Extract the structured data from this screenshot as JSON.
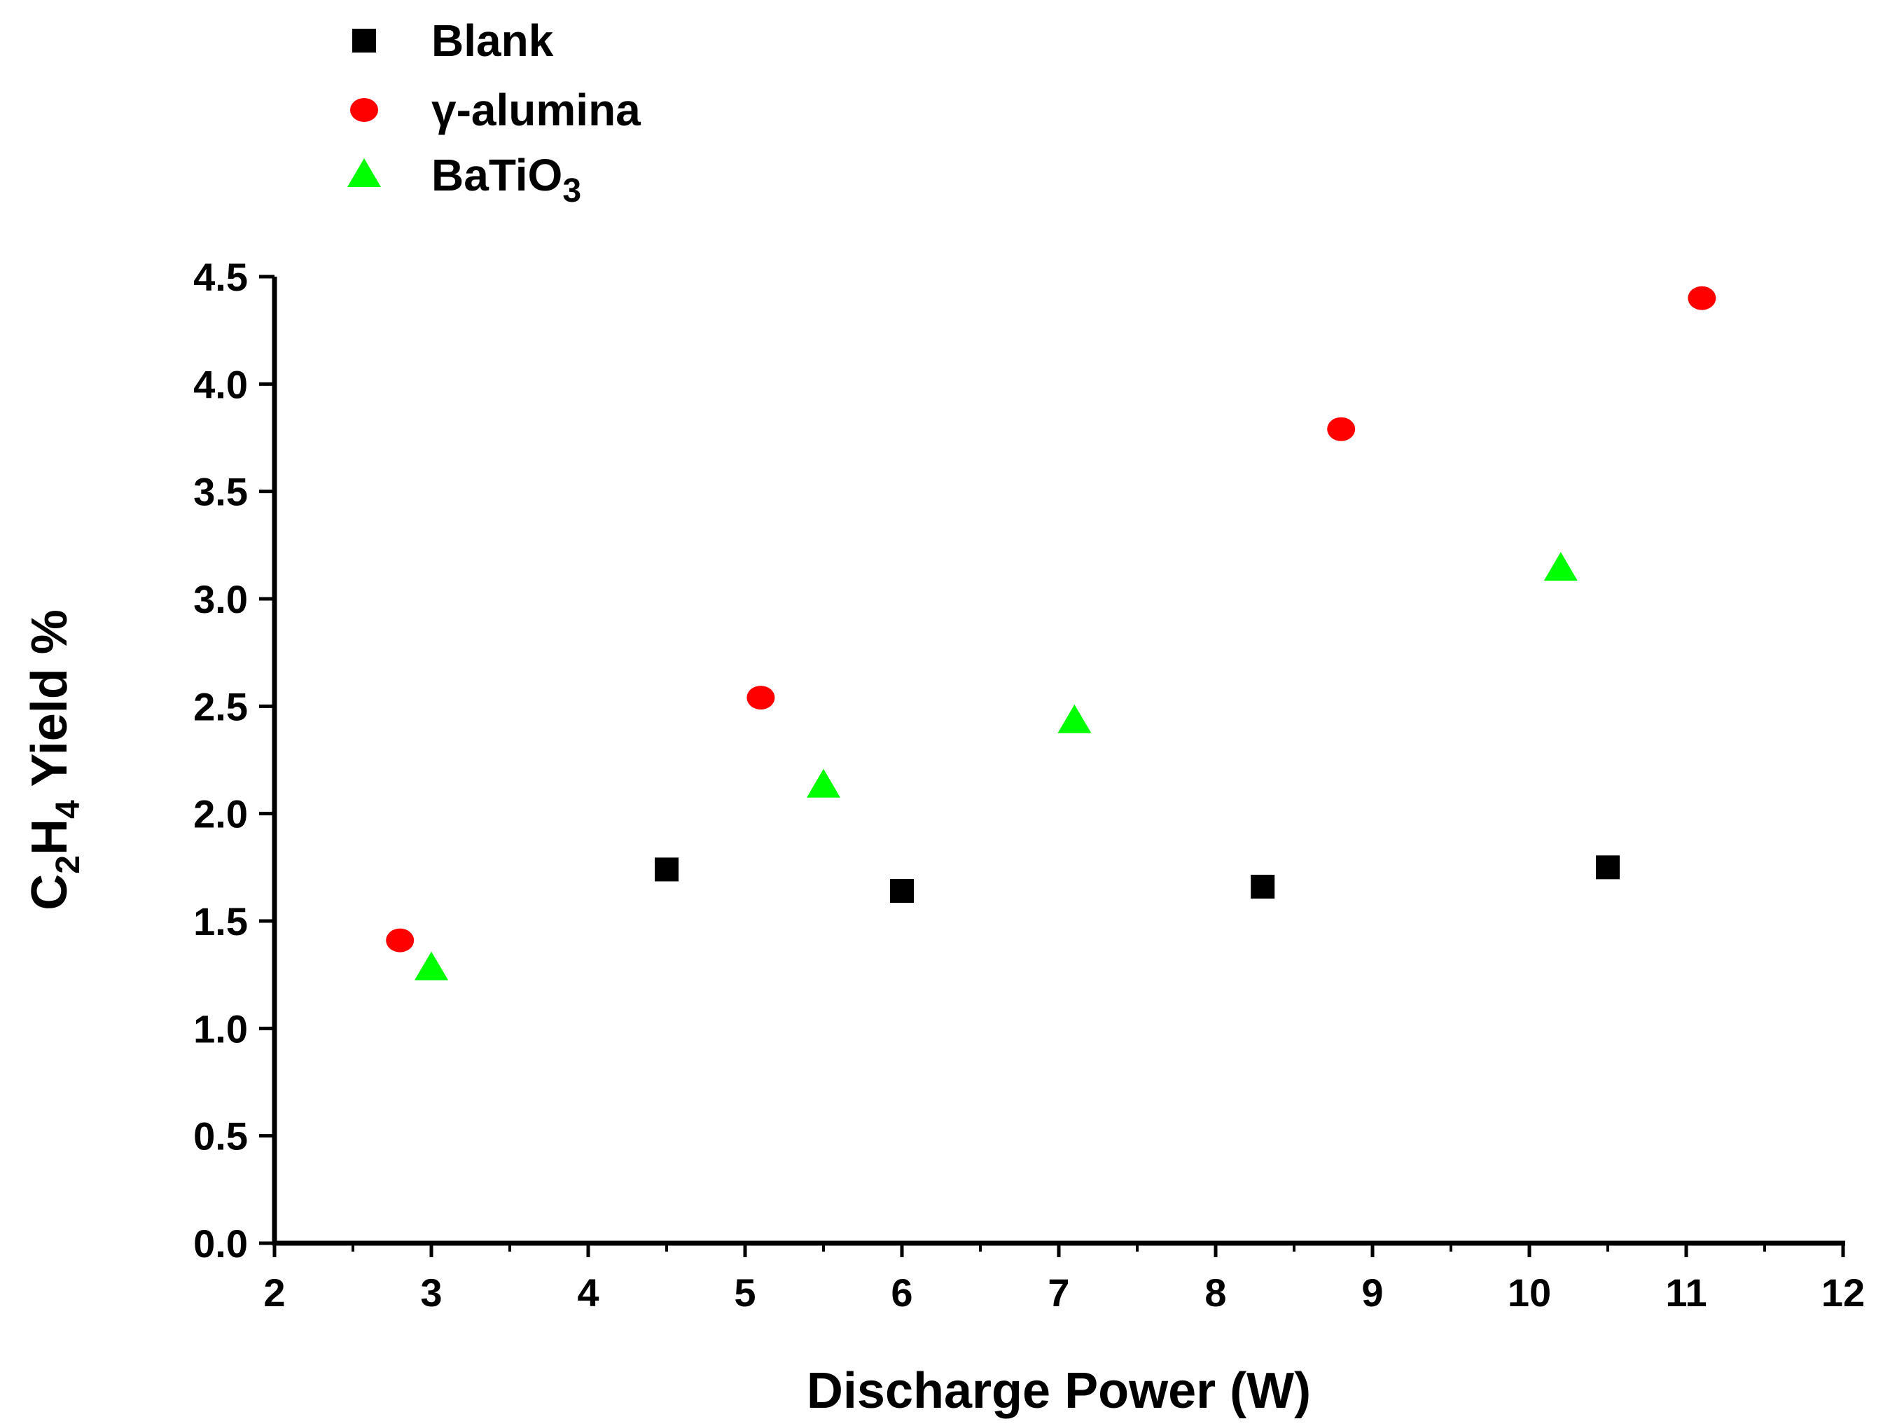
{
  "chart_data": {
    "type": "scatter",
    "title": "",
    "xlabel": "Discharge Power (W)",
    "ylabel": {
      "parts": [
        "C",
        "2",
        "H",
        "4",
        " Yield %"
      ]
    },
    "xlim": [
      2,
      12
    ],
    "ylim": [
      0,
      4.5
    ],
    "xticks": [
      "2",
      "3",
      "4",
      "5",
      "6",
      "7",
      "8",
      "9",
      "10",
      "11",
      "12"
    ],
    "yticks": [
      "0.0",
      "0.5",
      "1.0",
      "1.5",
      "2.0",
      "2.5",
      "3.0",
      "3.5",
      "4.0",
      "4.5"
    ],
    "legend_position": "top-left, above plot",
    "series": [
      {
        "name": "Blank",
        "label_parts": [
          "Blank"
        ],
        "marker": "square",
        "color": "#000000",
        "x": [
          4.5,
          6.0,
          8.3,
          10.5
        ],
        "y": [
          1.74,
          1.64,
          1.66,
          1.75
        ]
      },
      {
        "name": "γ-alumina",
        "label_parts": [
          "γ-alumina"
        ],
        "marker": "circle",
        "color": "#ff0000",
        "x": [
          2.8,
          5.1,
          8.8,
          11.1
        ],
        "y": [
          1.41,
          2.54,
          3.79,
          4.4
        ]
      },
      {
        "name": "BaTiO3",
        "label_parts": [
          "BaTiO",
          "3"
        ],
        "marker": "triangle",
        "color": "#00ff00",
        "x": [
          3.0,
          5.5,
          7.1,
          10.2
        ],
        "y": [
          1.28,
          2.13,
          2.43,
          3.14
        ]
      }
    ]
  }
}
